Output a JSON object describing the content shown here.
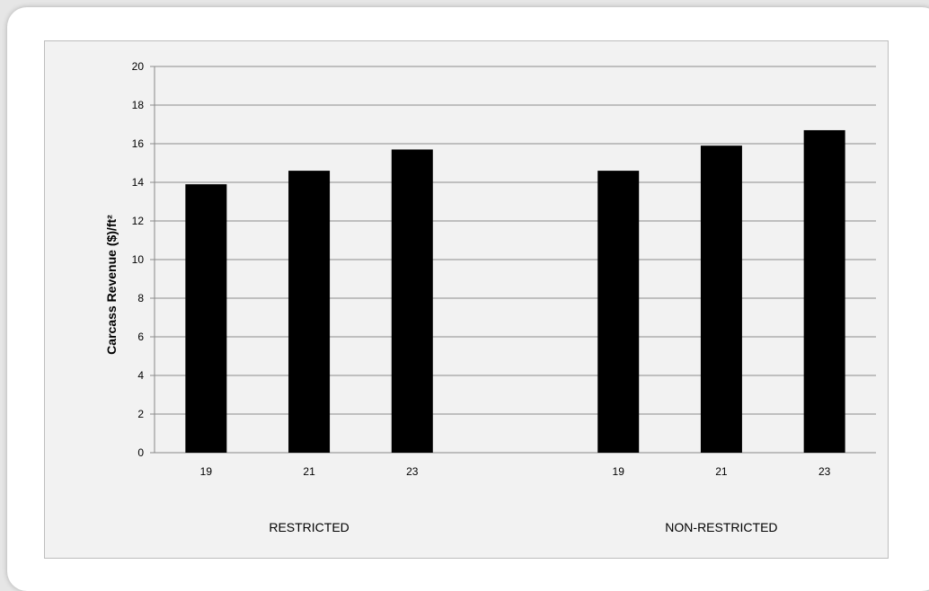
{
  "chart_data": {
    "type": "bar",
    "ylabel": "Carcass Revenue ($)/ft²",
    "xlabel": "",
    "ylim": [
      0,
      20
    ],
    "ytick_step": 2,
    "grid": true,
    "bar_color": "#000000",
    "groups": [
      {
        "label": "RESTRICTED",
        "categories": [
          "19",
          "21",
          "23"
        ],
        "values": [
          13.9,
          14.6,
          15.7
        ]
      },
      {
        "label": "NON-RESTRICTED",
        "categories": [
          "19",
          "21",
          "23"
        ],
        "values": [
          14.6,
          15.9,
          16.7
        ]
      }
    ]
  }
}
